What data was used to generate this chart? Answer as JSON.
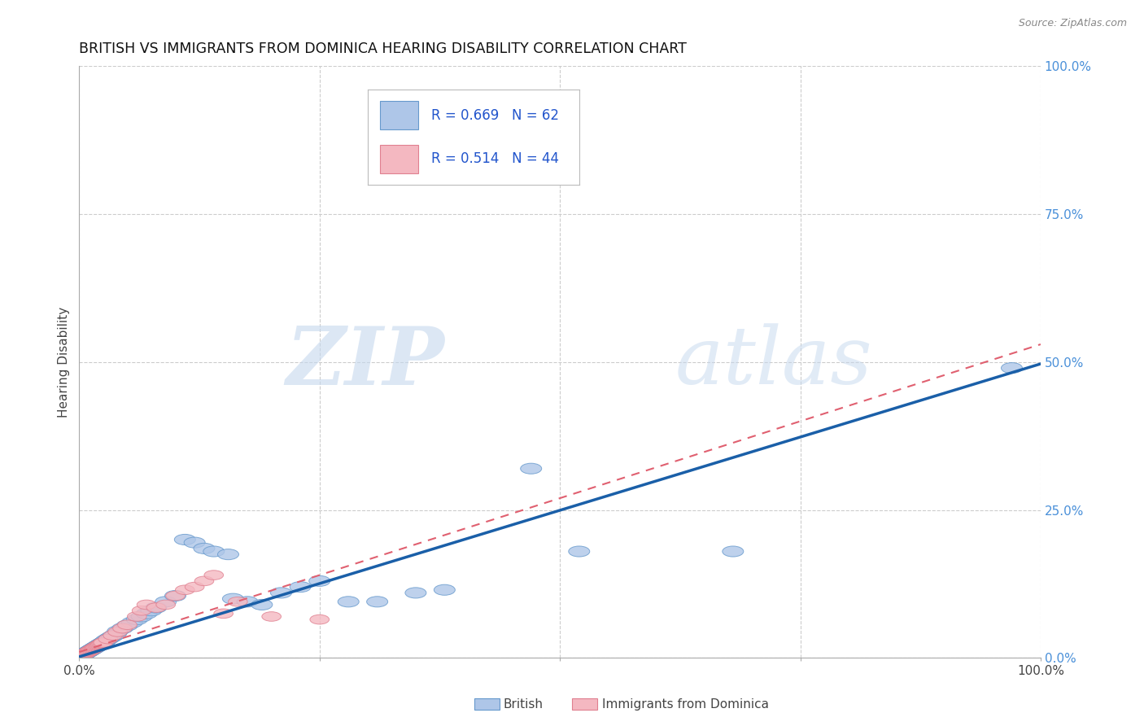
{
  "title": "BRITISH VS IMMIGRANTS FROM DOMINICA HEARING DISABILITY CORRELATION CHART",
  "source": "Source: ZipAtlas.com",
  "ylabel": "Hearing Disability",
  "xlim": [
    0,
    1
  ],
  "ylim": [
    0,
    1
  ],
  "ytick_labels": [
    "0.0%",
    "25.0%",
    "50.0%",
    "75.0%",
    "100.0%"
  ],
  "ytick_vals": [
    0,
    0.25,
    0.5,
    0.75,
    1.0
  ],
  "xtick_vals": [
    0,
    0.25,
    0.5,
    0.75,
    1.0
  ],
  "british_R": 0.669,
  "british_N": 62,
  "dominica_R": 0.514,
  "dominica_N": 44,
  "british_color": "#aec6e8",
  "british_edge_color": "#6699cc",
  "british_line_color": "#1a5fa8",
  "dominica_color": "#f4b8c1",
  "dominica_edge_color": "#e08090",
  "dominica_line_color": "#e06070",
  "legend_text_color": "#2255cc",
  "watermark_color": "#d8e4f0",
  "background_color": "#ffffff",
  "grid_color": "#cccccc",
  "title_fontsize": 12.5,
  "axis_label_fontsize": 11,
  "tick_fontsize": 11,
  "right_tick_color": "#4a90d9",
  "british_line_intercept": 0.002,
  "british_line_slope": 0.495,
  "dominica_line_intercept": 0.01,
  "dominica_line_slope": 0.52,
  "british_x": [
    0.002,
    0.003,
    0.004,
    0.005,
    0.006,
    0.007,
    0.008,
    0.009,
    0.01,
    0.011,
    0.012,
    0.013,
    0.014,
    0.015,
    0.016,
    0.017,
    0.018,
    0.019,
    0.02,
    0.021,
    0.022,
    0.023,
    0.024,
    0.025,
    0.026,
    0.027,
    0.028,
    0.03,
    0.032,
    0.034,
    0.036,
    0.038,
    0.04,
    0.045,
    0.05,
    0.055,
    0.06,
    0.065,
    0.07,
    0.075,
    0.08,
    0.09,
    0.1,
    0.11,
    0.12,
    0.13,
    0.14,
    0.155,
    0.16,
    0.175,
    0.19,
    0.21,
    0.23,
    0.25,
    0.28,
    0.31,
    0.35,
    0.38,
    0.47,
    0.52,
    0.68,
    0.97
  ],
  "british_y": [
    0.003,
    0.004,
    0.005,
    0.006,
    0.007,
    0.008,
    0.009,
    0.01,
    0.011,
    0.012,
    0.013,
    0.014,
    0.015,
    0.016,
    0.017,
    0.018,
    0.019,
    0.02,
    0.021,
    0.022,
    0.023,
    0.024,
    0.025,
    0.026,
    0.027,
    0.028,
    0.03,
    0.032,
    0.034,
    0.036,
    0.038,
    0.04,
    0.045,
    0.05,
    0.055,
    0.06,
    0.065,
    0.07,
    0.075,
    0.08,
    0.085,
    0.095,
    0.105,
    0.2,
    0.195,
    0.185,
    0.18,
    0.175,
    0.1,
    0.095,
    0.09,
    0.11,
    0.12,
    0.13,
    0.095,
    0.095,
    0.11,
    0.115,
    0.32,
    0.18,
    0.18,
    0.49
  ],
  "dominica_x": [
    0.001,
    0.002,
    0.003,
    0.004,
    0.005,
    0.006,
    0.007,
    0.008,
    0.009,
    0.01,
    0.011,
    0.012,
    0.013,
    0.014,
    0.015,
    0.016,
    0.017,
    0.018,
    0.019,
    0.02,
    0.021,
    0.022,
    0.023,
    0.024,
    0.025,
    0.03,
    0.035,
    0.04,
    0.045,
    0.05,
    0.06,
    0.065,
    0.07,
    0.08,
    0.09,
    0.1,
    0.11,
    0.12,
    0.13,
    0.14,
    0.15,
    0.165,
    0.2,
    0.25
  ],
  "dominica_y": [
    0.002,
    0.003,
    0.004,
    0.005,
    0.006,
    0.007,
    0.008,
    0.009,
    0.01,
    0.011,
    0.012,
    0.013,
    0.014,
    0.015,
    0.016,
    0.017,
    0.018,
    0.019,
    0.02,
    0.021,
    0.022,
    0.023,
    0.024,
    0.025,
    0.026,
    0.032,
    0.038,
    0.044,
    0.05,
    0.056,
    0.07,
    0.08,
    0.09,
    0.085,
    0.09,
    0.105,
    0.115,
    0.12,
    0.13,
    0.14,
    0.075,
    0.095,
    0.07,
    0.065
  ]
}
